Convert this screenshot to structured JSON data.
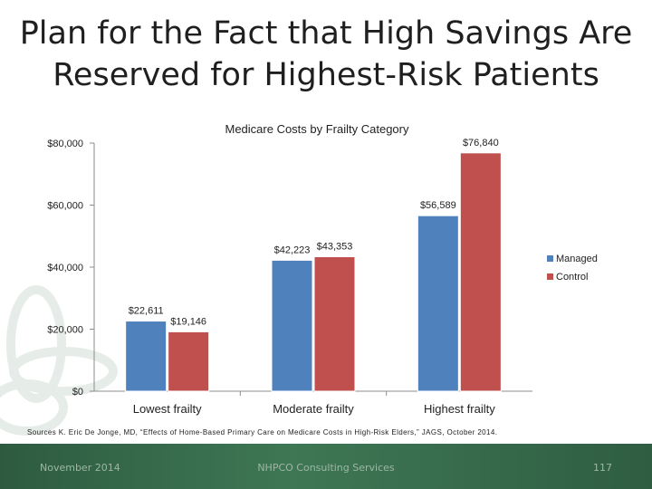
{
  "slide": {
    "title_line1": "Plan for the Fact that High Savings Are",
    "title_line2": "Reserved for Highest-Risk Patients",
    "source": "Sources K. Eric De Jonge, MD, “Effects of Home-Based Primary Care on Medicare Costs in High-Risk Elders,” JAGS, October 2014.",
    "footer_left": "November 2014",
    "footer_center": "NHPCO Consulting Services",
    "footer_right": "117"
  },
  "colors": {
    "managed": "#4f81bd",
    "control": "#c0504d",
    "axis": "#8c8c8c"
  },
  "chart_data": {
    "type": "bar",
    "title": "Medicare Costs by Frailty Category",
    "categories": [
      "Lowest frailty",
      "Moderate frailty",
      "Highest frailty"
    ],
    "series": [
      {
        "name": "Managed",
        "values": [
          22611,
          42223,
          56589
        ],
        "labels": [
          "$22,611",
          "$42,223",
          "$56,589"
        ]
      },
      {
        "name": "Control",
        "values": [
          19146,
          43353,
          76840
        ],
        "labels": [
          "$19,146",
          "$43,353",
          "$76,840"
        ]
      }
    ],
    "ylim": [
      0,
      80000
    ],
    "yticks": [
      0,
      20000,
      40000,
      60000,
      80000
    ],
    "ytick_labels": [
      "$0",
      "$20,000",
      "$40,000",
      "$60,000",
      "$80,000"
    ],
    "legend_position": "right",
    "grid": false
  }
}
